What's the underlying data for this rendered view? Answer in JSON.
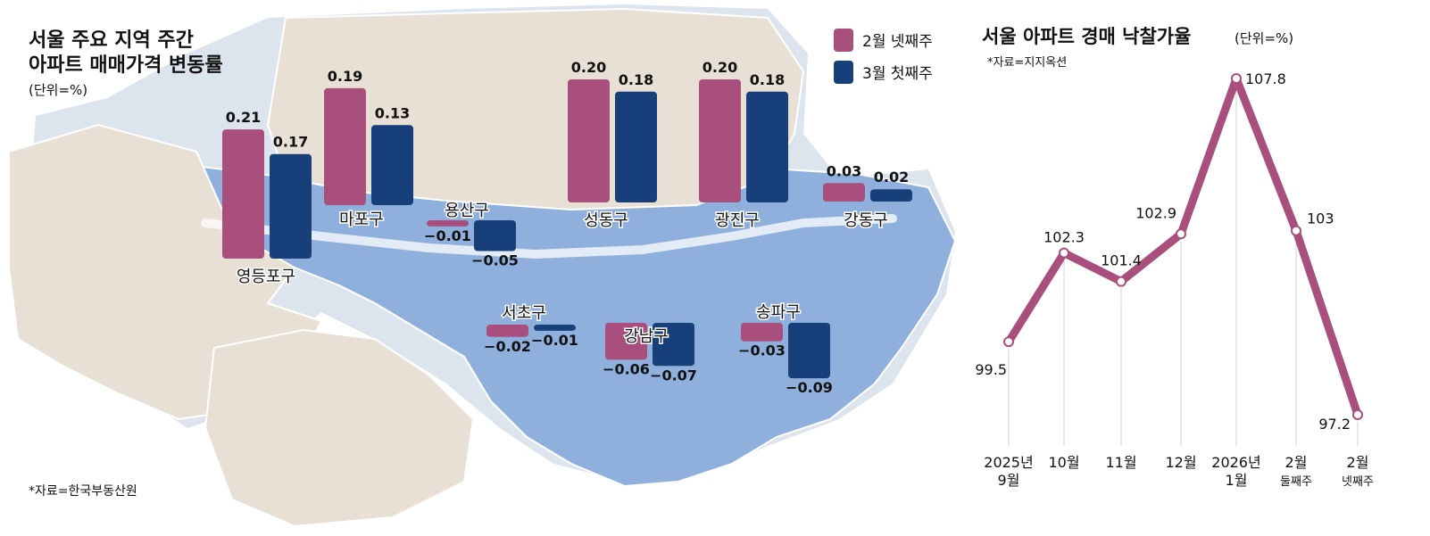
{
  "colors": {
    "feb_week4": "#a84f7d",
    "mar_week1": "#173f7a",
    "line": "#a84f7d",
    "seoul_south": "#8fb0dd",
    "seoul_north": "#e8e0d5",
    "map_background": "#dce4ee"
  },
  "chart_data": [
    {
      "type": "bar",
      "title": "서울 주요 지역 주간 아파트 매매가격 변동률",
      "title_line1": "서울 주요 지역 주간",
      "title_line2": "아파트 매매가격 변동률",
      "unit": "(단위=%)",
      "source": "*자료=한국부동산원",
      "categories": [
        "영등포구",
        "마포구",
        "용산구",
        "성동구",
        "광진구",
        "강동구",
        "서초구",
        "강남구",
        "송파구"
      ],
      "series": [
        {
          "name": "2월 넷째주",
          "values": [
            0.21,
            0.19,
            -0.01,
            0.2,
            0.2,
            0.03,
            -0.02,
            -0.06,
            -0.03
          ]
        },
        {
          "name": "3월 첫째주",
          "values": [
            0.17,
            0.13,
            -0.05,
            0.18,
            0.18,
            0.02,
            -0.01,
            -0.07,
            -0.09
          ]
        }
      ],
      "value_labels": [
        [
          "0.21",
          "0.19",
          "−0.01",
          "0.20",
          "0.20",
          "0.03",
          "−0.02",
          "−0.06",
          "−0.03"
        ],
        [
          "0.17",
          "0.13",
          "−0.05",
          "0.18",
          "0.18",
          "0.02",
          "−0.01",
          "−0.07",
          "−0.09"
        ]
      ],
      "legend": [
        "2월 넷째주",
        "3월 첫째주"
      ]
    },
    {
      "type": "line",
      "title": "서울 아파트 경매 낙찰가율",
      "unit": "(단위=%)",
      "source": "*자료=지지옥션",
      "categories": [
        "2025년 9월",
        "10월",
        "11월",
        "12월",
        "2026년 1월",
        "2월 둘째주",
        "2월 넷째주"
      ],
      "category_lines": [
        [
          "2025년",
          "9월"
        ],
        [
          "10월"
        ],
        [
          "11월"
        ],
        [
          "12월"
        ],
        [
          "2026년",
          "1월"
        ],
        [
          "2월",
          "둘째주"
        ],
        [
          "2월",
          "넷째주"
        ]
      ],
      "values": [
        99.5,
        102.3,
        101.4,
        102.9,
        107.8,
        103,
        97.2
      ],
      "value_labels": [
        "99.5",
        "102.3",
        "101.4",
        "102.9",
        "107.8",
        "103",
        "97.2"
      ]
    }
  ]
}
